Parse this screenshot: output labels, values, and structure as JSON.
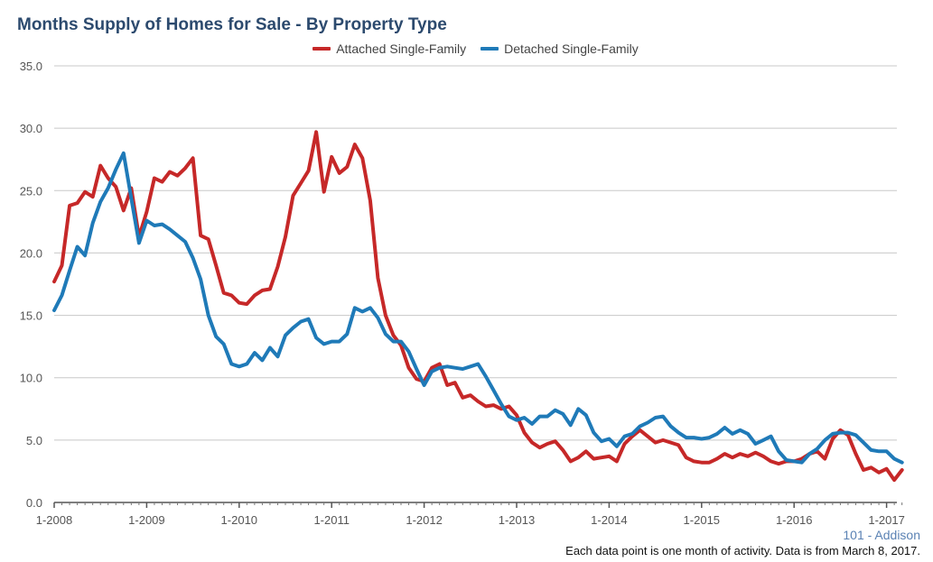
{
  "title": "Months Supply of Homes for Sale - By Property Type",
  "footer": {
    "place": "101 - Addison",
    "note": "Each data point is one month of activity. Data is from March 8, 2017."
  },
  "chart_data": {
    "type": "line",
    "title": "Months Supply of Homes for Sale - By Property Type",
    "xlabel": "",
    "ylabel": "",
    "ylim": [
      0,
      35
    ],
    "yticks": [
      "0.0",
      "5.0",
      "10.0",
      "15.0",
      "20.0",
      "25.0",
      "30.0",
      "35.0"
    ],
    "xticks": [
      "1-2008",
      "1-2009",
      "1-2010",
      "1-2011",
      "1-2012",
      "1-2013",
      "1-2014",
      "1-2015",
      "1-2016",
      "1-2017"
    ],
    "x_start": "1-2008",
    "x_end": "2-2017",
    "grid": true,
    "legend_position": "top-center",
    "series": [
      {
        "name": "Attached Single-Family",
        "color": "#c62828",
        "values": [
          17.7,
          19.0,
          23.8,
          24.0,
          24.9,
          24.5,
          27.0,
          26.0,
          25.3,
          23.4,
          25.2,
          21.3,
          23.3,
          26.0,
          25.7,
          26.5,
          26.2,
          26.8,
          27.6,
          21.4,
          21.1,
          19.0,
          16.8,
          16.6,
          16.0,
          15.9,
          16.6,
          17.0,
          17.1,
          18.9,
          21.3,
          24.6,
          25.6,
          26.6,
          29.7,
          24.9,
          27.7,
          26.4,
          26.9,
          28.7,
          27.6,
          24.2,
          18.0,
          15.0,
          13.4,
          12.6,
          10.8,
          9.9,
          9.7,
          10.8,
          11.1,
          9.4,
          9.6,
          8.4,
          8.6,
          8.1,
          7.7,
          7.8,
          7.5,
          7.7,
          7.0,
          5.6,
          4.8,
          4.4,
          4.7,
          4.9,
          4.2,
          3.3,
          3.6,
          4.1,
          3.5,
          3.6,
          3.7,
          3.3,
          4.7,
          5.3,
          5.8,
          5.3,
          4.8,
          5.0,
          4.8,
          4.6,
          3.6,
          3.3,
          3.2,
          3.2,
          3.5,
          3.9,
          3.6,
          3.9,
          3.7,
          4.0,
          3.7,
          3.3,
          3.1,
          3.3,
          3.3,
          3.5,
          3.9,
          4.1,
          3.5,
          5.1,
          5.8,
          5.4,
          3.9,
          2.6,
          2.8,
          2.4,
          2.7,
          1.8,
          2.6
        ]
      },
      {
        "name": "Detached Single-Family",
        "color": "#1f7ab8",
        "values": [
          15.4,
          16.6,
          18.6,
          20.5,
          19.8,
          22.4,
          24.1,
          25.2,
          26.7,
          28.0,
          24.4,
          20.8,
          22.6,
          22.2,
          22.3,
          21.9,
          21.4,
          20.9,
          19.6,
          17.9,
          15.0,
          13.3,
          12.7,
          11.1,
          10.9,
          11.1,
          12.0,
          11.4,
          12.4,
          11.7,
          13.4,
          14.0,
          14.5,
          14.7,
          13.2,
          12.7,
          12.9,
          12.9,
          13.5,
          15.6,
          15.3,
          15.6,
          14.8,
          13.5,
          12.9,
          12.9,
          12.1,
          10.7,
          9.4,
          10.5,
          10.8,
          10.9,
          10.8,
          10.7,
          10.9,
          11.1,
          10.1,
          9.0,
          7.9,
          6.9,
          6.6,
          6.8,
          6.3,
          6.9,
          6.9,
          7.4,
          7.1,
          6.2,
          7.5,
          7.0,
          5.6,
          4.9,
          5.1,
          4.5,
          5.3,
          5.5,
          6.1,
          6.4,
          6.8,
          6.9,
          6.1,
          5.6,
          5.2,
          5.2,
          5.1,
          5.2,
          5.5,
          6.0,
          5.5,
          5.8,
          5.5,
          4.7,
          5.0,
          5.3,
          4.1,
          3.4,
          3.3,
          3.2,
          3.9,
          4.3,
          5.0,
          5.5,
          5.6,
          5.6,
          5.4,
          4.8,
          4.2,
          4.1,
          4.1,
          3.5,
          3.2
        ]
      }
    ]
  }
}
